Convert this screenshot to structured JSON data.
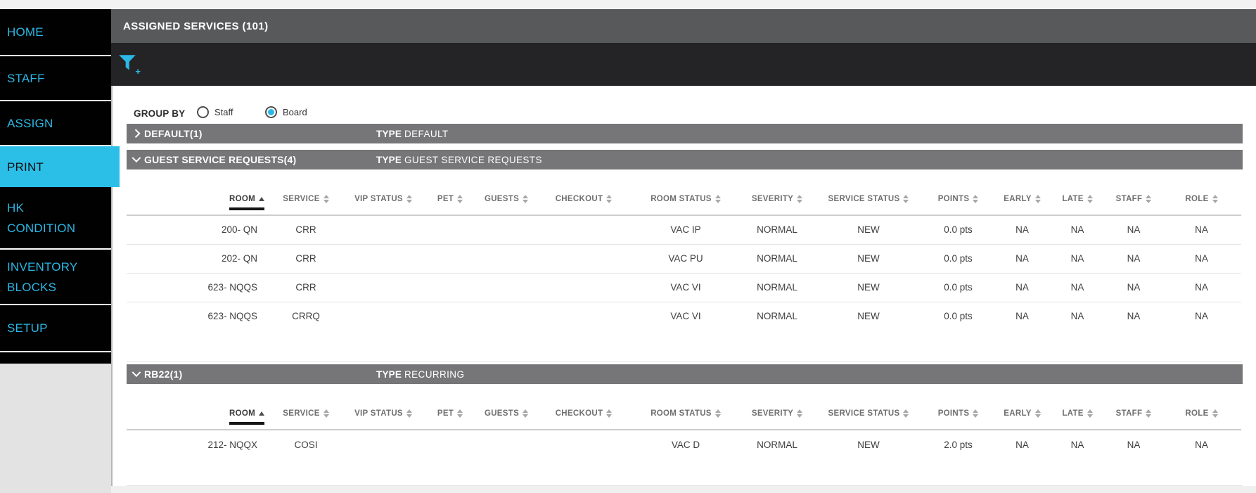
{
  "colors": {
    "accent": "#2bb8e6",
    "topbar_gray": "#58595b",
    "section_bar_gray": "#767678",
    "filter_bar_black": "#242427",
    "sidebar_black": "#010101"
  },
  "sidebar": {
    "active_item": "PRINT",
    "items": [
      {
        "id": "home",
        "label": "HOME"
      },
      {
        "id": "staff",
        "label": "STAFF"
      },
      {
        "id": "assign",
        "label": "ASSIGN"
      },
      {
        "id": "print",
        "label": "PRINT"
      },
      {
        "id": "hk-condition",
        "label": "HK CONDITION"
      },
      {
        "id": "inventory-blocks",
        "label": "INVENTORY BLOCKS"
      },
      {
        "id": "setup",
        "label": "SETUP"
      }
    ]
  },
  "header": {
    "title": "ASSIGNED SERVICES (101)"
  },
  "toolbar": {
    "filter_icon": "filter-add-icon"
  },
  "group_by": {
    "label": "GROUP BY",
    "options": [
      {
        "label": "Staff",
        "selected": false
      },
      {
        "label": "Board",
        "selected": true
      }
    ]
  },
  "table_columns": [
    {
      "key": "room",
      "label": "ROOM",
      "sorted": "asc"
    },
    {
      "key": "service",
      "label": "SERVICE"
    },
    {
      "key": "vip_status",
      "label": "VIP STATUS"
    },
    {
      "key": "pet",
      "label": "PET"
    },
    {
      "key": "guests",
      "label": "GUESTS"
    },
    {
      "key": "checkout",
      "label": "CHECKOUT"
    },
    {
      "key": "room_status",
      "label": "ROOM STATUS"
    },
    {
      "key": "severity",
      "label": "SEVERITY"
    },
    {
      "key": "service_status",
      "label": "SERVICE STATUS"
    },
    {
      "key": "points",
      "label": "POINTS"
    },
    {
      "key": "early",
      "label": "EARLY"
    },
    {
      "key": "late",
      "label": "LATE"
    },
    {
      "key": "staff",
      "label": "STAFF"
    },
    {
      "key": "role",
      "label": "ROLE"
    }
  ],
  "sections": [
    {
      "title": "DEFAULT(1)",
      "type_label": "TYPE",
      "type_value": "DEFAULT",
      "collapsed": true,
      "rows": []
    },
    {
      "title": "GUEST SERVICE REQUESTS(4)",
      "type_label": "TYPE",
      "type_value": "GUEST SERVICE REQUESTS",
      "collapsed": false,
      "rows": [
        {
          "room": "200- QN",
          "service": "CRR",
          "vip_status": "",
          "pet": "",
          "guests": "",
          "checkout": "",
          "room_status": "VAC IP",
          "severity": "NORMAL",
          "service_status": "NEW",
          "points": "0.0 pts",
          "early": "NA",
          "late": "NA",
          "staff": "NA",
          "role": "NA"
        },
        {
          "room": "202- QN",
          "service": "CRR",
          "vip_status": "",
          "pet": "",
          "guests": "",
          "checkout": "",
          "room_status": "VAC PU",
          "severity": "NORMAL",
          "service_status": "NEW",
          "points": "0.0 pts",
          "early": "NA",
          "late": "NA",
          "staff": "NA",
          "role": "NA"
        },
        {
          "room": "623- NQQS",
          "service": "CRR",
          "vip_status": "",
          "pet": "",
          "guests": "",
          "checkout": "",
          "room_status": "VAC VI",
          "severity": "NORMAL",
          "service_status": "NEW",
          "points": "0.0 pts",
          "early": "NA",
          "late": "NA",
          "staff": "NA",
          "role": "NA"
        },
        {
          "room": "623- NQQS",
          "service": "CRRQ",
          "vip_status": "",
          "pet": "",
          "guests": "",
          "checkout": "",
          "room_status": "VAC VI",
          "severity": "NORMAL",
          "service_status": "NEW",
          "points": "0.0 pts",
          "early": "NA",
          "late": "NA",
          "staff": "NA",
          "role": "NA"
        }
      ]
    },
    {
      "title": "RB22(1)",
      "type_label": "TYPE",
      "type_value": "RECURRING",
      "collapsed": false,
      "rows": [
        {
          "room": "212- NQQX",
          "service": "COSI",
          "vip_status": "",
          "pet": "",
          "guests": "",
          "checkout": "",
          "room_status": "VAC D",
          "severity": "NORMAL",
          "service_status": "NEW",
          "points": "2.0 pts",
          "early": "NA",
          "late": "NA",
          "staff": "NA",
          "role": "NA"
        }
      ]
    }
  ]
}
